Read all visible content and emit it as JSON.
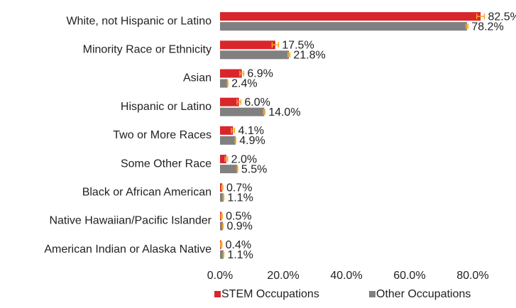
{
  "chart_data": {
    "type": "hbar",
    "categories": [
      "White, not Hispanic or Latino",
      "Minority Race or Ethnicity",
      "Asian",
      "Hispanic or Latino",
      "Two or More Races",
      "Some Other Race",
      "Black or African American",
      "Native Hawaiian/Pacific Islander",
      "American Indian or Alaska Native"
    ],
    "series": [
      {
        "name": "STEM Occupations",
        "color": "#d9262b",
        "values": [
          82.5,
          17.5,
          6.9,
          6.0,
          4.1,
          2.0,
          0.7,
          0.5,
          0.4
        ],
        "value_labels": [
          "82.5%",
          "17.5%",
          "6.9%",
          "6.0%",
          "4.1%",
          "2.0%",
          "0.7%",
          "0.5%",
          "0.4%"
        ],
        "errors": [
          1.2,
          1.0,
          0.6,
          0.6,
          0.5,
          0.4,
          0.2,
          0.2,
          0.2
        ]
      },
      {
        "name": "Other Occupations",
        "color": "#808080",
        "values": [
          78.2,
          21.8,
          2.4,
          14.0,
          4.9,
          5.5,
          1.1,
          0.9,
          1.1
        ],
        "value_labels": [
          "78.2%",
          "21.8%",
          "2.4%",
          "14.0%",
          "4.9%",
          "5.5%",
          "1.1%",
          "0.9%",
          "1.1%"
        ],
        "errors": [
          0.3,
          0.3,
          0.1,
          0.2,
          0.1,
          0.1,
          0.1,
          0.1,
          0.1
        ]
      }
    ],
    "error_color": "#f5a623",
    "xlim": [
      0,
      90
    ],
    "xticks": [
      {
        "value": 0,
        "label": "0.0%"
      },
      {
        "value": 20,
        "label": "20.0%"
      },
      {
        "value": 40,
        "label": "40.0%"
      },
      {
        "value": 60,
        "label": "60.0%"
      },
      {
        "value": 80,
        "label": "80.0%"
      }
    ],
    "legend": "bottom"
  }
}
